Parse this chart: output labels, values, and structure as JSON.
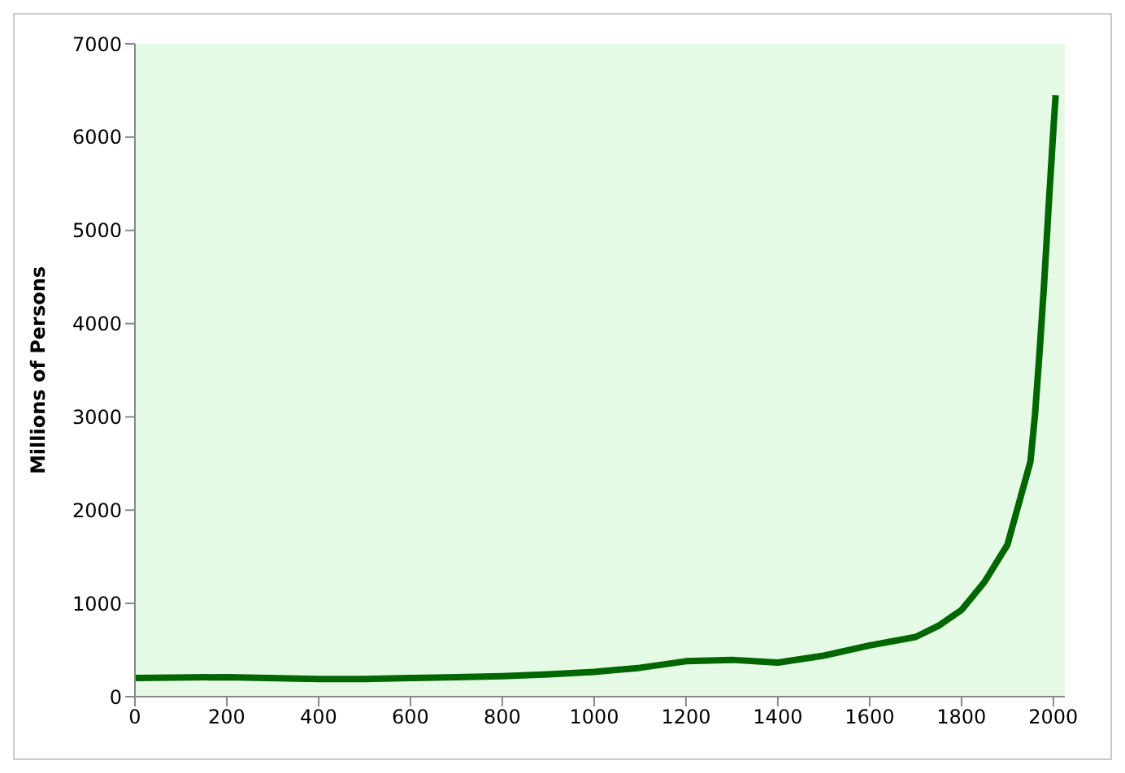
{
  "chart_data": {
    "type": "line",
    "ylabel": "Millions of Persons",
    "x": [
      0,
      200,
      400,
      500,
      600,
      700,
      800,
      900,
      1000,
      1100,
      1200,
      1300,
      1400,
      1500,
      1600,
      1700,
      1750,
      1800,
      1850,
      1900,
      1950,
      1960,
      1970,
      1980,
      1990,
      2000,
      2005
    ],
    "series": [
      {
        "color": "#006600",
        "values": [
          200,
          210,
          190,
          190,
          200,
          210,
          220,
          240,
          265,
          310,
          380,
          395,
          365,
          440,
          550,
          640,
          760,
          930,
          1230,
          1630,
          2520,
          3020,
          3700,
          4440,
          5280,
          6080,
          6450
        ]
      }
    ],
    "xlim": [
      0,
      2025
    ],
    "xticks": [
      0,
      200,
      400,
      600,
      800,
      1000,
      1200,
      1400,
      1600,
      1800,
      2000
    ],
    "ylim": [
      0,
      7000
    ],
    "yticks": [
      0,
      1000,
      2000,
      3000,
      4000,
      5000,
      6000,
      7000
    ],
    "marker": "none",
    "line_style": "solid"
  }
}
